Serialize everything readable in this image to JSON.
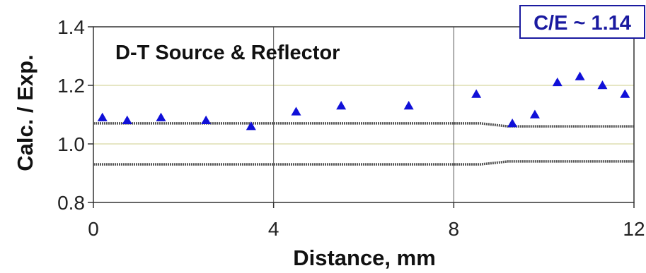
{
  "chart_data": {
    "type": "scatter",
    "title": "D-T Source & Reflector",
    "annotation": "C/E ~ 1.14",
    "xlabel": "Distance, mm",
    "ylabel": "Calc. / Exp.",
    "xlim": [
      0,
      12
    ],
    "ylim": [
      0.8,
      1.4
    ],
    "xticks": [
      "0",
      "4",
      "8",
      "12"
    ],
    "yticks": [
      "0.8",
      "1.0",
      "1.2",
      "1.4"
    ],
    "grid": true,
    "series": [
      {
        "marker": "triangle",
        "color": "#1010d8",
        "x": [
          0.2,
          0.75,
          1.5,
          2.5,
          3.5,
          4.5,
          5.5,
          7.0,
          8.5,
          9.3,
          9.8,
          10.3,
          10.8,
          11.3,
          11.8
        ],
        "y": [
          1.09,
          1.08,
          1.09,
          1.08,
          1.06,
          1.11,
          1.13,
          1.13,
          1.17,
          1.07,
          1.1,
          1.21,
          1.23,
          1.2,
          1.17
        ]
      },
      {
        "line": "upper-band",
        "color": "#555555",
        "x": [
          0,
          8.6,
          9.2,
          12
        ],
        "y": [
          1.07,
          1.07,
          1.06,
          1.06
        ]
      },
      {
        "line": "lower-band",
        "color": "#555555",
        "x": [
          0,
          8.6,
          9.2,
          12
        ],
        "y": [
          0.93,
          0.93,
          0.94,
          0.94
        ]
      }
    ]
  }
}
